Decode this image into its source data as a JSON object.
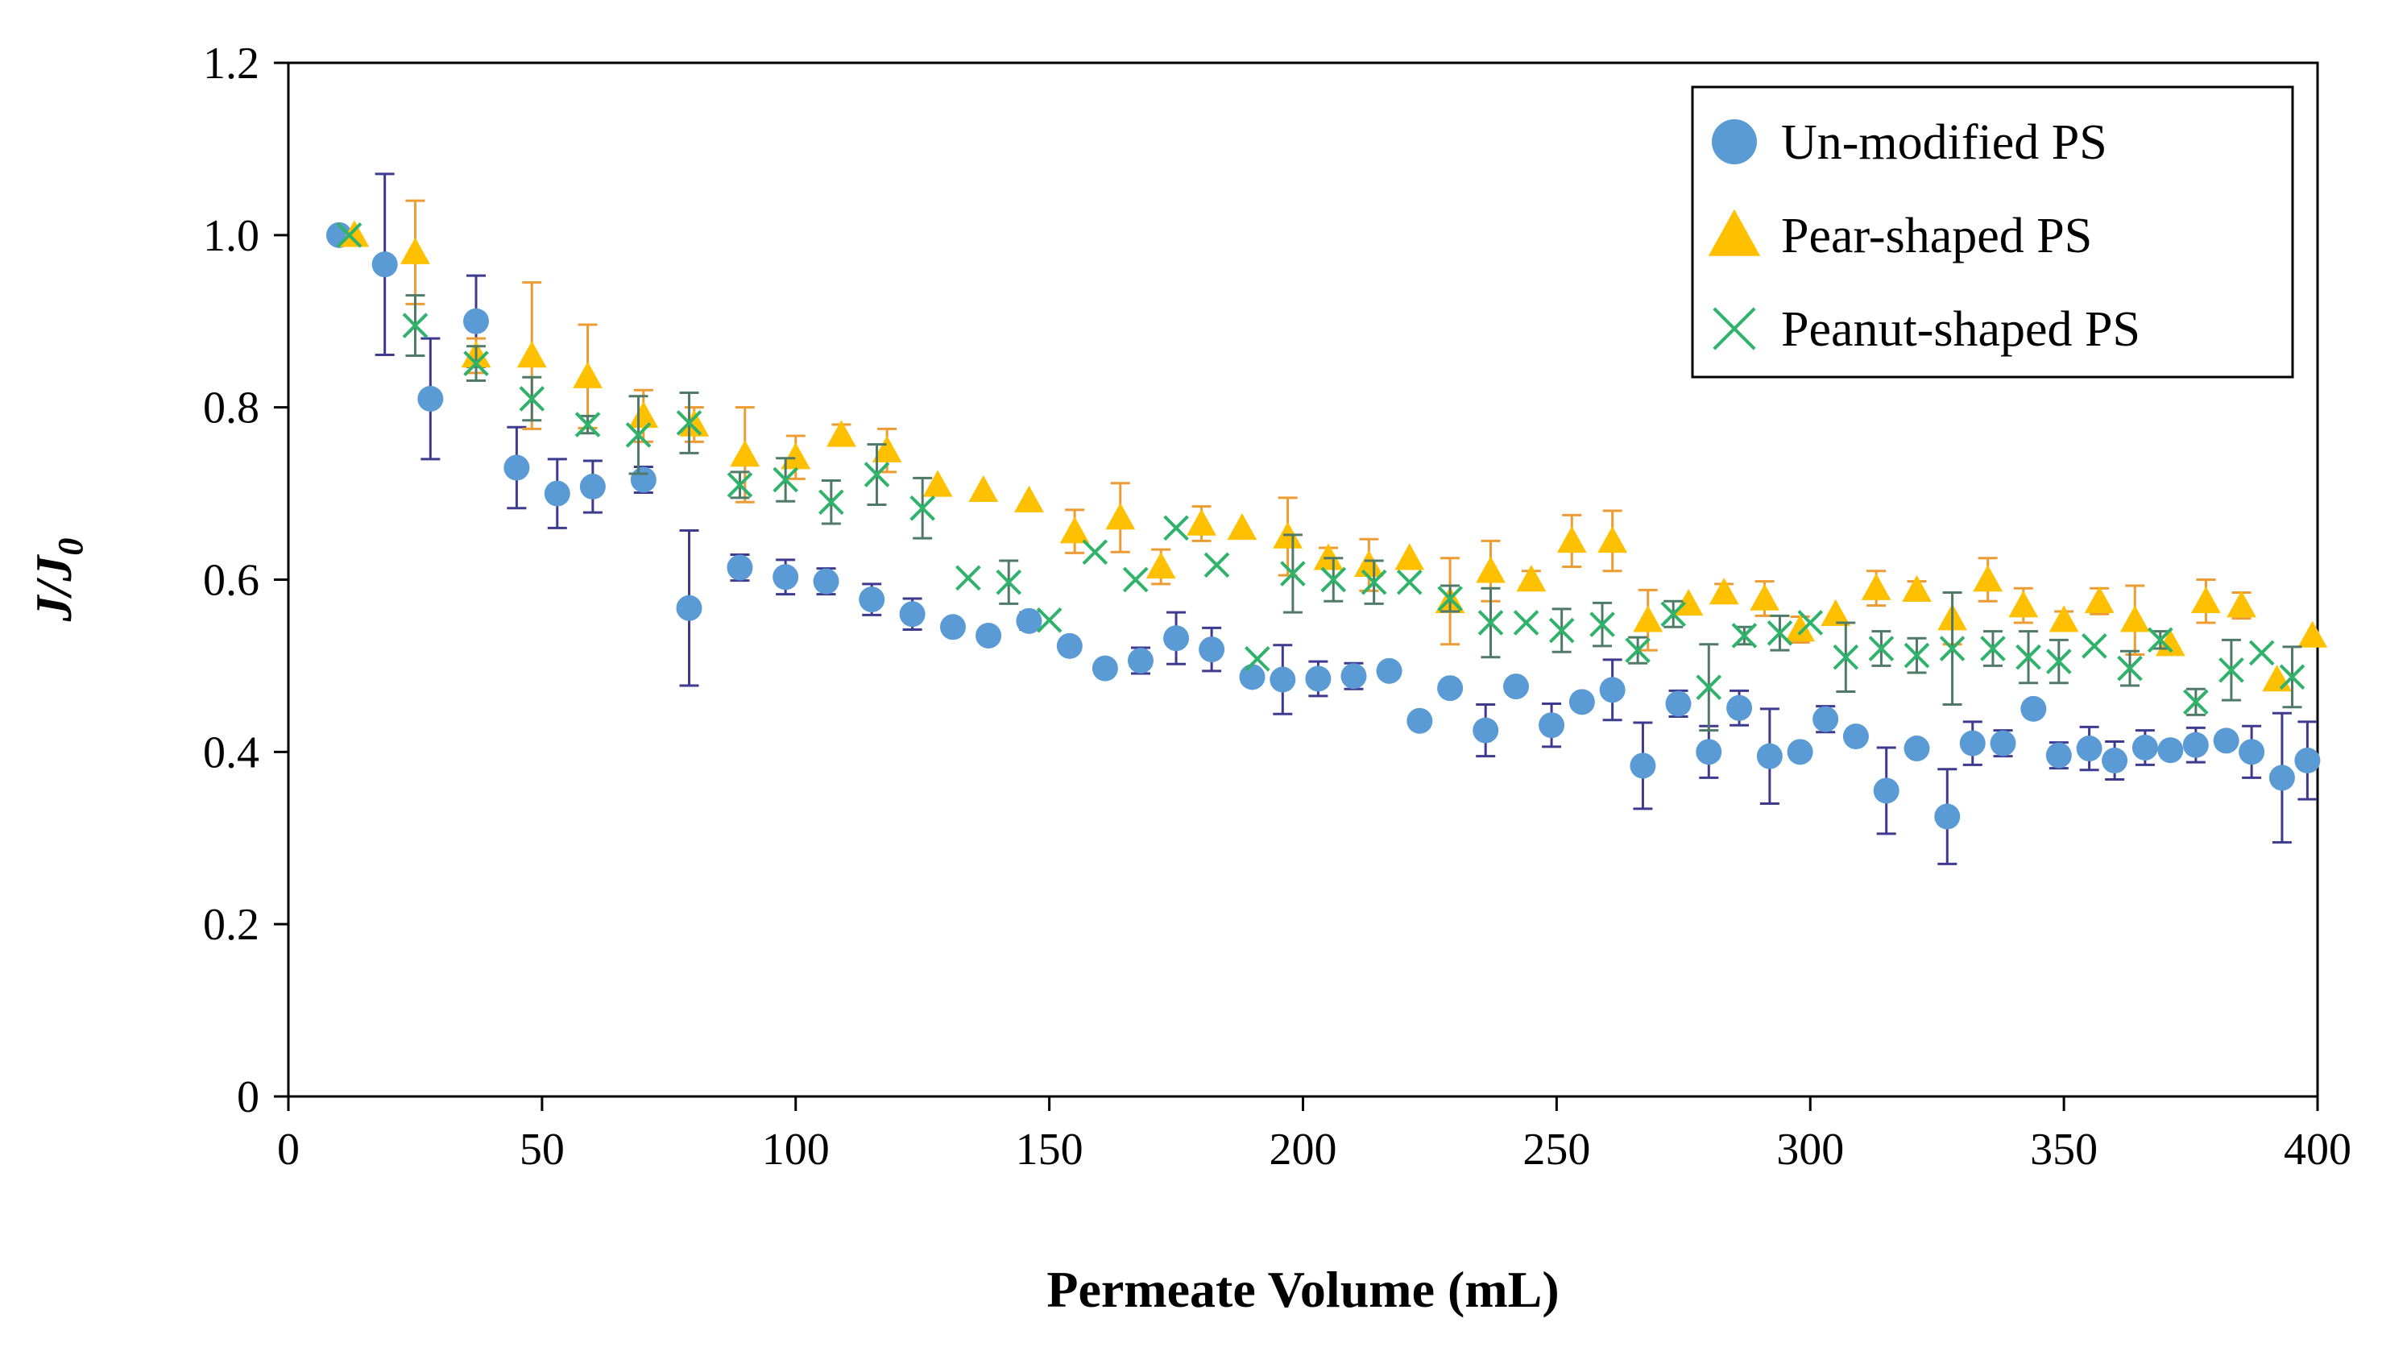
{
  "chart_data": {
    "type": "scatter",
    "title": "",
    "xlabel": "Permeate Volume (mL)",
    "ylabel": "J/J",
    "ylabel_subscript": "0",
    "xlim": [
      0,
      400
    ],
    "ylim": [
      0,
      1.2
    ],
    "x_ticks": [
      {
        "value": 0,
        "label": "0"
      },
      {
        "value": 50,
        "label": "50"
      },
      {
        "value": 100,
        "label": "100"
      },
      {
        "value": 150,
        "label": "150"
      },
      {
        "value": 200,
        "label": "200"
      },
      {
        "value": 250,
        "label": "250"
      },
      {
        "value": 300,
        "label": "300"
      },
      {
        "value": 350,
        "label": "350"
      },
      {
        "value": 400,
        "label": "400"
      }
    ],
    "y_ticks": [
      {
        "value": 0,
        "label": "0"
      },
      {
        "value": 0.2,
        "label": "0.2"
      },
      {
        "value": 0.4,
        "label": "0.4"
      },
      {
        "value": 0.6,
        "label": "0.6"
      },
      {
        "value": 0.8,
        "label": "0.8"
      },
      {
        "value": 1.0,
        "label": "1.0"
      },
      {
        "value": 1.2,
        "label": "1.2"
      }
    ],
    "grid": false,
    "legend_position": "top-right",
    "series": [
      {
        "name": "Un-modified PS",
        "marker": "circle",
        "color": "#5B9BD5",
        "error_color": "#3D3A8F",
        "points": [
          [
            10,
            1.0,
            0
          ],
          [
            19,
            0.966,
            0.105
          ],
          [
            28,
            0.81,
            0.07
          ],
          [
            37,
            0.9,
            0.053
          ],
          [
            45,
            0.73,
            0.047
          ],
          [
            53,
            0.7,
            0.04
          ],
          [
            60,
            0.708,
            0.03
          ],
          [
            70,
            0.716,
            0.015
          ],
          [
            79,
            0.567,
            0.09
          ],
          [
            89,
            0.614,
            0.015
          ],
          [
            98,
            0.603,
            0.02
          ],
          [
            106,
            0.598,
            0.015
          ],
          [
            115,
            0.577,
            0.018
          ],
          [
            123,
            0.56,
            0.018
          ],
          [
            131,
            0.545,
            0
          ],
          [
            138,
            0.535,
            0
          ],
          [
            146,
            0.552,
            0.01
          ],
          [
            154,
            0.523,
            0
          ],
          [
            161,
            0.497,
            0
          ],
          [
            168,
            0.506,
            0.015
          ],
          [
            175,
            0.532,
            0.03
          ],
          [
            182,
            0.519,
            0.025
          ],
          [
            190,
            0.487,
            0
          ],
          [
            196,
            0.484,
            0.04
          ],
          [
            203,
            0.485,
            0.02
          ],
          [
            210,
            0.488,
            0.015
          ],
          [
            217,
            0.494,
            0
          ],
          [
            223,
            0.436,
            0
          ],
          [
            229,
            0.474,
            0
          ],
          [
            236,
            0.425,
            0.03
          ],
          [
            242,
            0.476,
            0
          ],
          [
            249,
            0.431,
            0.025
          ],
          [
            255,
            0.458,
            0
          ],
          [
            261,
            0.472,
            0.035
          ],
          [
            267,
            0.384,
            0.05
          ],
          [
            274,
            0.456,
            0.015
          ],
          [
            280,
            0.4,
            0.03
          ],
          [
            286,
            0.451,
            0.02
          ],
          [
            292,
            0.395,
            0.055
          ],
          [
            298,
            0.4,
            0
          ],
          [
            303,
            0.438,
            0.015
          ],
          [
            309,
            0.418,
            0
          ],
          [
            315,
            0.355,
            0.05
          ],
          [
            321,
            0.404,
            0
          ],
          [
            327,
            0.325,
            0.055
          ],
          [
            332,
            0.41,
            0.025
          ],
          [
            338,
            0.41,
            0.015
          ],
          [
            344,
            0.45,
            0
          ],
          [
            349,
            0.396,
            0.015
          ],
          [
            355,
            0.404,
            0.025
          ],
          [
            360,
            0.39,
            0.022
          ],
          [
            366,
            0.405,
            0.02
          ],
          [
            371,
            0.402,
            0
          ],
          [
            376,
            0.408,
            0.02
          ],
          [
            382,
            0.413,
            0
          ],
          [
            387,
            0.4,
            0.03
          ],
          [
            393,
            0.37,
            0.075
          ],
          [
            398,
            0.39,
            0.045
          ]
        ]
      },
      {
        "name": "Pear-shaped PS",
        "marker": "triangle",
        "color": "#FFC000",
        "error_color": "#ED9B33",
        "points": [
          [
            13,
            1.0,
            0
          ],
          [
            25,
            0.98,
            0.06
          ],
          [
            37,
            0.86,
            0.02
          ],
          [
            48,
            0.86,
            0.085
          ],
          [
            59,
            0.836,
            0.06
          ],
          [
            70,
            0.79,
            0.03
          ],
          [
            80,
            0.78,
            0.02
          ],
          [
            90,
            0.745,
            0.055
          ],
          [
            100,
            0.742,
            0.025
          ],
          [
            109,
            0.768,
            0.012
          ],
          [
            118,
            0.75,
            0.025
          ],
          [
            128,
            0.71,
            0
          ],
          [
            137,
            0.704,
            0
          ],
          [
            146,
            0.692,
            0
          ],
          [
            155,
            0.656,
            0.025
          ],
          [
            164,
            0.672,
            0.04
          ],
          [
            172,
            0.615,
            0.02
          ],
          [
            180,
            0.665,
            0.02
          ],
          [
            188,
            0.66,
            0
          ],
          [
            197,
            0.65,
            0.045
          ],
          [
            205,
            0.625,
            0.012
          ],
          [
            213,
            0.617,
            0.03
          ],
          [
            221,
            0.625,
            0
          ],
          [
            229,
            0.575,
            0.05
          ],
          [
            237,
            0.61,
            0.035
          ],
          [
            245,
            0.6,
            0.01
          ],
          [
            253,
            0.645,
            0.03
          ],
          [
            261,
            0.645,
            0.035
          ],
          [
            268,
            0.553,
            0.035
          ],
          [
            276,
            0.572,
            0
          ],
          [
            283,
            0.585,
            0.01
          ],
          [
            291,
            0.578,
            0.02
          ],
          [
            298,
            0.542,
            0.015
          ],
          [
            305,
            0.56,
            0
          ],
          [
            313,
            0.59,
            0.02
          ],
          [
            321,
            0.588,
            0.01
          ],
          [
            328,
            0.555,
            0.03
          ],
          [
            335,
            0.6,
            0.025
          ],
          [
            342,
            0.57,
            0.02
          ],
          [
            350,
            0.553,
            0.01
          ],
          [
            357,
            0.575,
            0.015
          ],
          [
            364,
            0.553,
            0.04
          ],
          [
            371,
            0.525,
            0
          ],
          [
            378,
            0.575,
            0.025
          ],
          [
            385,
            0.57,
            0.015
          ],
          [
            392,
            0.484,
            0
          ],
          [
            399,
            0.535,
            0
          ]
        ]
      },
      {
        "name": "Peanut-shaped PS",
        "marker": "x",
        "color": "#2FB36B",
        "error_color": "#4F7A68",
        "points": [
          [
            12,
            1.0,
            0
          ],
          [
            25,
            0.895,
            0.035
          ],
          [
            37,
            0.851,
            0.02
          ],
          [
            48,
            0.81,
            0.025
          ],
          [
            59,
            0.78,
            0.01
          ],
          [
            69,
            0.768,
            0.045
          ],
          [
            79,
            0.782,
            0.035
          ],
          [
            89,
            0.71,
            0.015
          ],
          [
            98,
            0.716,
            0.025
          ],
          [
            107,
            0.69,
            0.025
          ],
          [
            116,
            0.722,
            0.035
          ],
          [
            125,
            0.683,
            0.035
          ],
          [
            134,
            0.602,
            0
          ],
          [
            142,
            0.597,
            0.025
          ],
          [
            150,
            0.553,
            0
          ],
          [
            159,
            0.632,
            0
          ],
          [
            167,
            0.6,
            0
          ],
          [
            175,
            0.66,
            0
          ],
          [
            183,
            0.617,
            0
          ],
          [
            191,
            0.508,
            0
          ],
          [
            198,
            0.607,
            0.045
          ],
          [
            206,
            0.6,
            0.025
          ],
          [
            214,
            0.597,
            0.025
          ],
          [
            221,
            0.597,
            0
          ],
          [
            229,
            0.578,
            0.015
          ],
          [
            237,
            0.55,
            0.04
          ],
          [
            244,
            0.55,
            0
          ],
          [
            251,
            0.541,
            0.025
          ],
          [
            259,
            0.548,
            0.025
          ],
          [
            266,
            0.518,
            0.015
          ],
          [
            273,
            0.56,
            0.015
          ],
          [
            280,
            0.475,
            0.05
          ],
          [
            287,
            0.535,
            0.01
          ],
          [
            294,
            0.538,
            0.02
          ],
          [
            300,
            0.55,
            0
          ],
          [
            307,
            0.51,
            0.04
          ],
          [
            314,
            0.52,
            0.02
          ],
          [
            321,
            0.512,
            0.02
          ],
          [
            328,
            0.52,
            0.065
          ],
          [
            336,
            0.52,
            0.02
          ],
          [
            343,
            0.51,
            0.03
          ],
          [
            349,
            0.505,
            0.025
          ],
          [
            356,
            0.523,
            0
          ],
          [
            363,
            0.497,
            0.02
          ],
          [
            369,
            0.53,
            0.01
          ],
          [
            376,
            0.458,
            0.015
          ],
          [
            383,
            0.495,
            0.035
          ],
          [
            389,
            0.515,
            0
          ],
          [
            395,
            0.487,
            0.035
          ]
        ]
      }
    ]
  }
}
